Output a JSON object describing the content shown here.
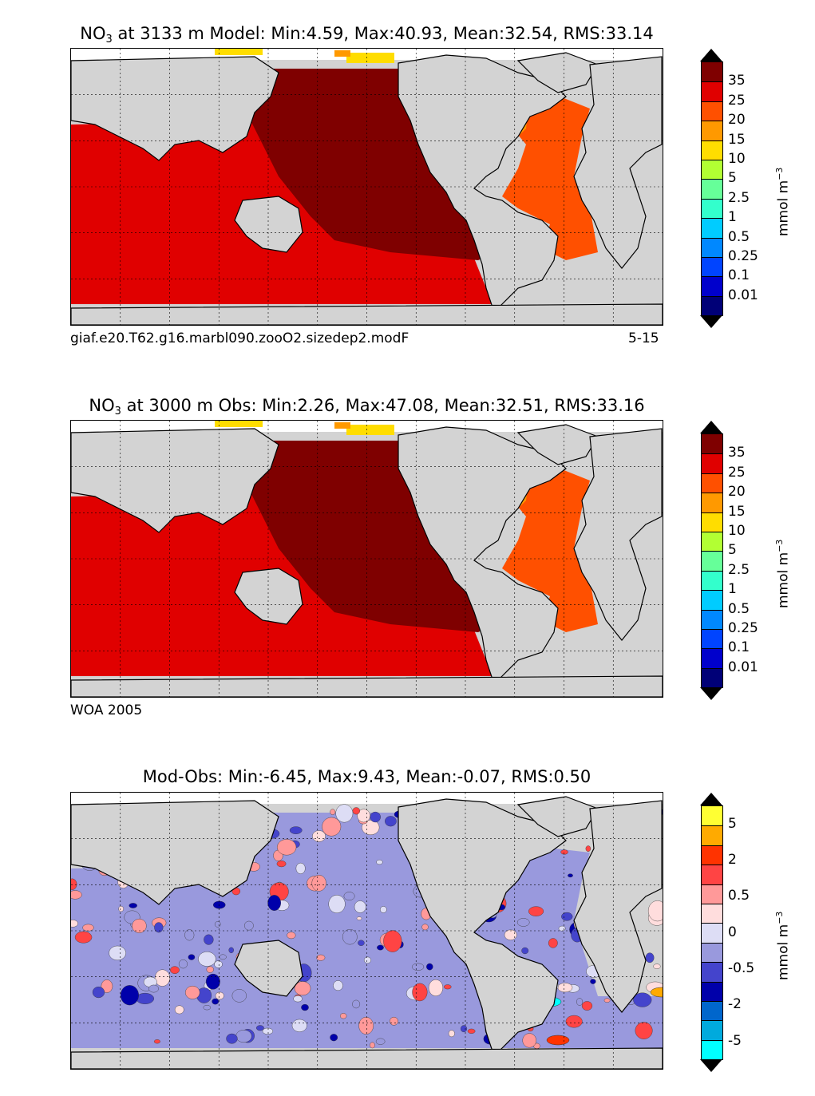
{
  "panels": [
    {
      "title_prefix": "NO",
      "title_sub": "3",
      "title_rest": " at 3133 m Model: Min:4.59, Max:40.93, Mean:32.54, RMS:33.14",
      "caption_left": "giaf.e20.T62.g16.marbl090.zooO2.sizedep2.modF",
      "caption_right": "5-15",
      "colorbar_labels": [
        "35",
        "25",
        "20",
        "15",
        "10",
        "5",
        "2.5",
        "1",
        "0.5",
        "0.25",
        "0.1",
        "0.01"
      ],
      "colorbar_colors": [
        "#7f0000",
        "#e00000",
        "#ff5000",
        "#ff9900",
        "#ffdd00",
        "#b2ff33",
        "#66ff99",
        "#33ffcc",
        "#00ccff",
        "#0088ff",
        "#0044ff",
        "#0000cc",
        "#000077"
      ],
      "unit": "mmol m",
      "unit_sup": "−3"
    },
    {
      "title_prefix": "NO",
      "title_sub": "3",
      "title_rest": " at 3000 m Obs: Min:2.26, Max:47.08, Mean:32.51, RMS:33.16",
      "caption_left": "WOA 2005",
      "caption_right": "",
      "colorbar_labels": [
        "35",
        "25",
        "20",
        "15",
        "10",
        "5",
        "2.5",
        "1",
        "0.5",
        "0.25",
        "0.1",
        "0.01"
      ],
      "colorbar_colors": [
        "#7f0000",
        "#e00000",
        "#ff5000",
        "#ff9900",
        "#ffdd00",
        "#b2ff33",
        "#66ff99",
        "#33ffcc",
        "#00ccff",
        "#0088ff",
        "#0044ff",
        "#0000cc",
        "#000077"
      ],
      "unit": "mmol m",
      "unit_sup": "−3"
    },
    {
      "title_prefix": "",
      "title_sub": "",
      "title_rest": "Mod-Obs: Min:-6.45, Max:9.43, Mean:-0.07, RMS:0.50",
      "caption_left": "",
      "caption_right": "",
      "colorbar_labels": [
        "5",
        "2",
        "0.5",
        "0",
        "-0.5",
        "-2",
        "-5"
      ],
      "colorbar_colors": [
        "#ffff33",
        "#ffaa00",
        "#ff3300",
        "#ff4444",
        "#ff9999",
        "#ffdddd",
        "#ddddf5",
        "#9999dd",
        "#4444cc",
        "#0000aa",
        "#0066cc",
        "#00aadd",
        "#00ffff"
      ],
      "unit": "mmol m",
      "unit_sup": "−3"
    }
  ]
}
